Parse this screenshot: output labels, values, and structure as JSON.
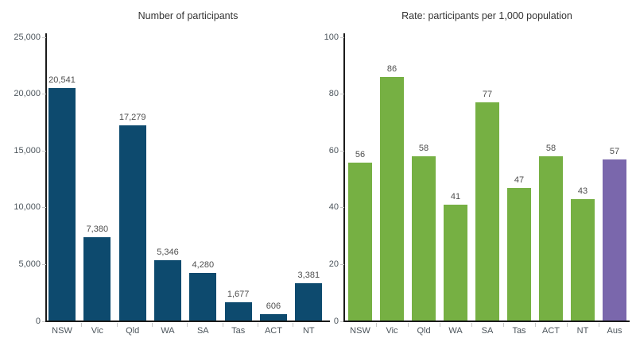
{
  "colors": {
    "participants_bar": "#0d4a6e",
    "rate_state_bar": "#76b043",
    "rate_national_bar": "#7a67ac",
    "axis_line": "#1a1a1a",
    "tick_mark": "#c9c9c9"
  },
  "chart_data": [
    {
      "type": "bar",
      "title": "Number of participants",
      "categories": [
        "NSW",
        "Vic",
        "Qld",
        "WA",
        "SA",
        "Tas",
        "ACT",
        "NT"
      ],
      "values": [
        20541,
        7380,
        17279,
        5346,
        4280,
        1677,
        606,
        3381
      ],
      "value_labels": [
        "20,541",
        "7,380",
        "17,279",
        "5,346",
        "4,280",
        "1,677",
        "606",
        "3,381"
      ],
      "xlabel": "",
      "ylabel": "",
      "ylim": [
        0,
        25000
      ],
      "yticks": [
        0,
        5000,
        10000,
        15000,
        20000,
        25000
      ],
      "ytick_labels": [
        "0",
        "5,000",
        "10,000",
        "15,000",
        "20,000",
        "25,000"
      ],
      "bar_colors": [
        "#0d4a6e",
        "#0d4a6e",
        "#0d4a6e",
        "#0d4a6e",
        "#0d4a6e",
        "#0d4a6e",
        "#0d4a6e",
        "#0d4a6e"
      ],
      "grid": false,
      "legend": "none"
    },
    {
      "type": "bar",
      "title": "Rate: participants per 1,000 population",
      "categories": [
        "NSW",
        "Vic",
        "Qld",
        "WA",
        "SA",
        "Tas",
        "ACT",
        "NT",
        "Aus"
      ],
      "values": [
        56,
        86,
        58,
        41,
        77,
        47,
        58,
        43,
        57
      ],
      "value_labels": [
        "56",
        "86",
        "58",
        "41",
        "77",
        "47",
        "58",
        "43",
        "57"
      ],
      "xlabel": "",
      "ylabel": "",
      "ylim": [
        0,
        100
      ],
      "yticks": [
        0,
        20,
        40,
        60,
        80,
        100
      ],
      "ytick_labels": [
        "0",
        "20",
        "40",
        "60",
        "80",
        "100"
      ],
      "bar_colors": [
        "#76b043",
        "#76b043",
        "#76b043",
        "#76b043",
        "#76b043",
        "#76b043",
        "#76b043",
        "#76b043",
        "#7a67ac"
      ],
      "grid": false,
      "legend": "none"
    }
  ]
}
